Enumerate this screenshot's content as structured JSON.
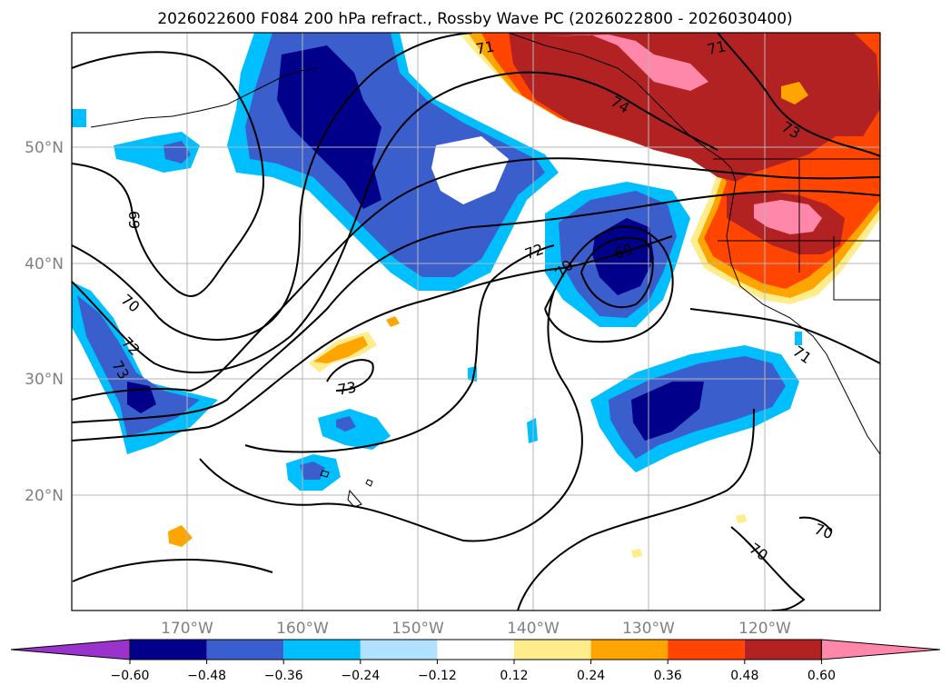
{
  "title": "2026022600 F084 200 hPa refract., Rossby Wave PC (2026022800 - 2026030400)",
  "latitude_labels": [
    "50°N",
    "40°N",
    "30°N",
    "20°N"
  ],
  "longitude_labels": [
    "170°W",
    "160°W",
    "150°W",
    "140°W",
    "130°W",
    "120°W"
  ],
  "colorbar": {
    "ticks": [
      "−0.60",
      "−0.48",
      "−0.36",
      "−0.24",
      "−0.12",
      "0.12",
      "0.24",
      "0.36",
      "0.48",
      "0.60"
    ],
    "colors": [
      "#9933cc",
      "#00008b",
      "#3a5fcd",
      "#00bfff",
      "#b0e2ff",
      "#ffffff",
      "#ffec8b",
      "#ffa500",
      "#ff4500",
      "#b22222",
      "#ff88aa"
    ]
  },
  "contour_labels": [
    "71",
    "71",
    "74",
    "73",
    "69",
    "70",
    "72",
    "73",
    "72",
    "70",
    "69",
    "73",
    "71",
    "70",
    "70"
  ],
  "map_extent": {
    "lon_range": [
      -180,
      -110
    ],
    "lat_range": [
      10,
      60
    ]
  }
}
